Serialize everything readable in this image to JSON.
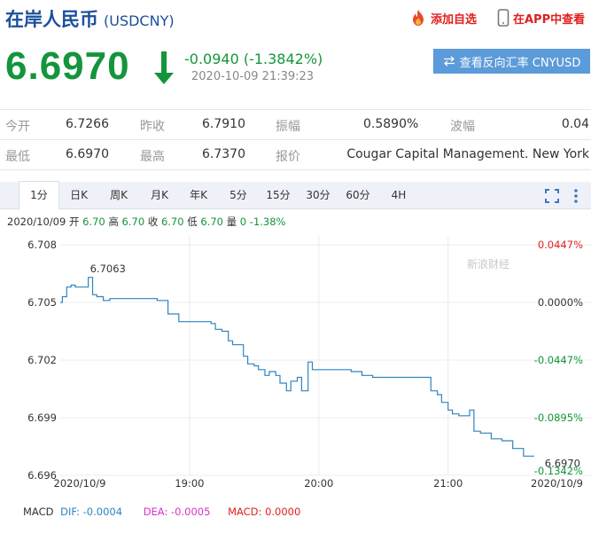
{
  "header": {
    "title": "在岸人民币",
    "code": "(USDCNY)",
    "add_watch": "添加自选",
    "open_app": "在APP中查看"
  },
  "quote": {
    "price": "6.6970",
    "change": "-0.0940 (-1.3842%)",
    "timestamp": "2020-10-09 21:39:23",
    "cny_button": "查看反向汇率 CNYUSD"
  },
  "stats": {
    "row1": [
      {
        "label": "今开",
        "value": "6.7266"
      },
      {
        "label": "昨收",
        "value": "6.7910"
      },
      {
        "label": "振幅",
        "value": "0.5890%"
      },
      {
        "label": "波幅",
        "value": "0.04"
      }
    ],
    "row2": [
      {
        "label": "最低",
        "value": "6.6970"
      },
      {
        "label": "最高",
        "value": "6.7370"
      },
      {
        "label": "报价",
        "value": "Cougar Capital Management. New York"
      }
    ]
  },
  "tabs": [
    "1分",
    "日K",
    "周K",
    "月K",
    "年K",
    "5分",
    "15分",
    "30分",
    "60分",
    "4H"
  ],
  "ohlc": {
    "date": "2020/10/09",
    "open_label": "开",
    "open": "6.70",
    "high_label": "高",
    "high": "6.70",
    "close_label": "收",
    "close": "6.70",
    "low_label": "低",
    "low": "6.70",
    "vol_label": "量",
    "vol": "0",
    "pct": "-1.38%"
  },
  "chart_data": {
    "type": "line",
    "y_ticks": [
      "6.708",
      "6.705",
      "6.702",
      "6.699",
      "6.696"
    ],
    "y_right_ticks": [
      "0.0447%",
      "0.0000%",
      "-0.0447%",
      "-0.0895%",
      "-0.1342%"
    ],
    "x_ticks": [
      "2020/10/9",
      "19:00",
      "20:00",
      "21:00",
      "2020/10/9"
    ],
    "ylim": [
      6.696,
      6.708
    ],
    "x": [
      "18:00",
      "18:01",
      "18:03",
      "18:05",
      "18:07",
      "18:10",
      "18:13",
      "18:15",
      "18:17",
      "18:20",
      "18:23",
      "18:25",
      "18:30",
      "18:35",
      "18:40",
      "18:45",
      "18:50",
      "18:55",
      "19:00",
      "19:05",
      "19:10",
      "19:12",
      "19:15",
      "19:18",
      "19:20",
      "19:25",
      "19:27",
      "19:30",
      "19:32",
      "19:35",
      "19:37",
      "19:40",
      "19:42",
      "19:45",
      "19:47",
      "19:50",
      "19:52",
      "19:55",
      "19:57",
      "20:00",
      "20:05",
      "20:10",
      "20:15",
      "20:20",
      "20:25",
      "20:30",
      "20:35",
      "20:40",
      "20:45",
      "20:50",
      "20:52",
      "20:55",
      "20:57",
      "21:00",
      "21:02",
      "21:05",
      "21:07",
      "21:10",
      "21:12",
      "21:15",
      "21:20",
      "21:25",
      "21:30",
      "21:35",
      "21:39"
    ],
    "values": [
      6.705,
      6.7053,
      6.7058,
      6.7059,
      6.7058,
      6.7058,
      6.7063,
      6.7054,
      6.7053,
      6.7051,
      6.7052,
      6.7052,
      6.7052,
      6.7052,
      6.7052,
      6.7051,
      6.7044,
      6.704,
      6.704,
      6.704,
      6.7039,
      6.7036,
      6.7035,
      6.703,
      6.7028,
      6.7022,
      6.7018,
      6.7017,
      6.7015,
      6.7012,
      6.7014,
      6.7012,
      6.7008,
      6.7004,
      6.7009,
      6.7011,
      6.7004,
      6.7019,
      6.7015,
      6.7015,
      6.7015,
      6.7015,
      6.7014,
      6.7012,
      6.7011,
      6.7011,
      6.7011,
      6.7011,
      6.7011,
      6.7011,
      6.7004,
      6.7002,
      6.6998,
      6.6994,
      6.6992,
      6.6991,
      6.6991,
      6.6994,
      6.6983,
      6.6982,
      6.6979,
      6.6978,
      6.6974,
      6.697,
      6.697
    ],
    "annotations": {
      "high": "6.7063",
      "last": "6.6970"
    },
    "watermark": "新浪财经"
  },
  "macd": {
    "label": "MACD",
    "dif": "DIF: -0.0004",
    "dea": "DEA: -0.0005",
    "macd": "MACD: 0.0000"
  },
  "colors": {
    "up": "#e02020",
    "down": "#14953b",
    "line": "#2f84c0",
    "brand": "#1a4f9c",
    "button": "#5b9bd9"
  }
}
